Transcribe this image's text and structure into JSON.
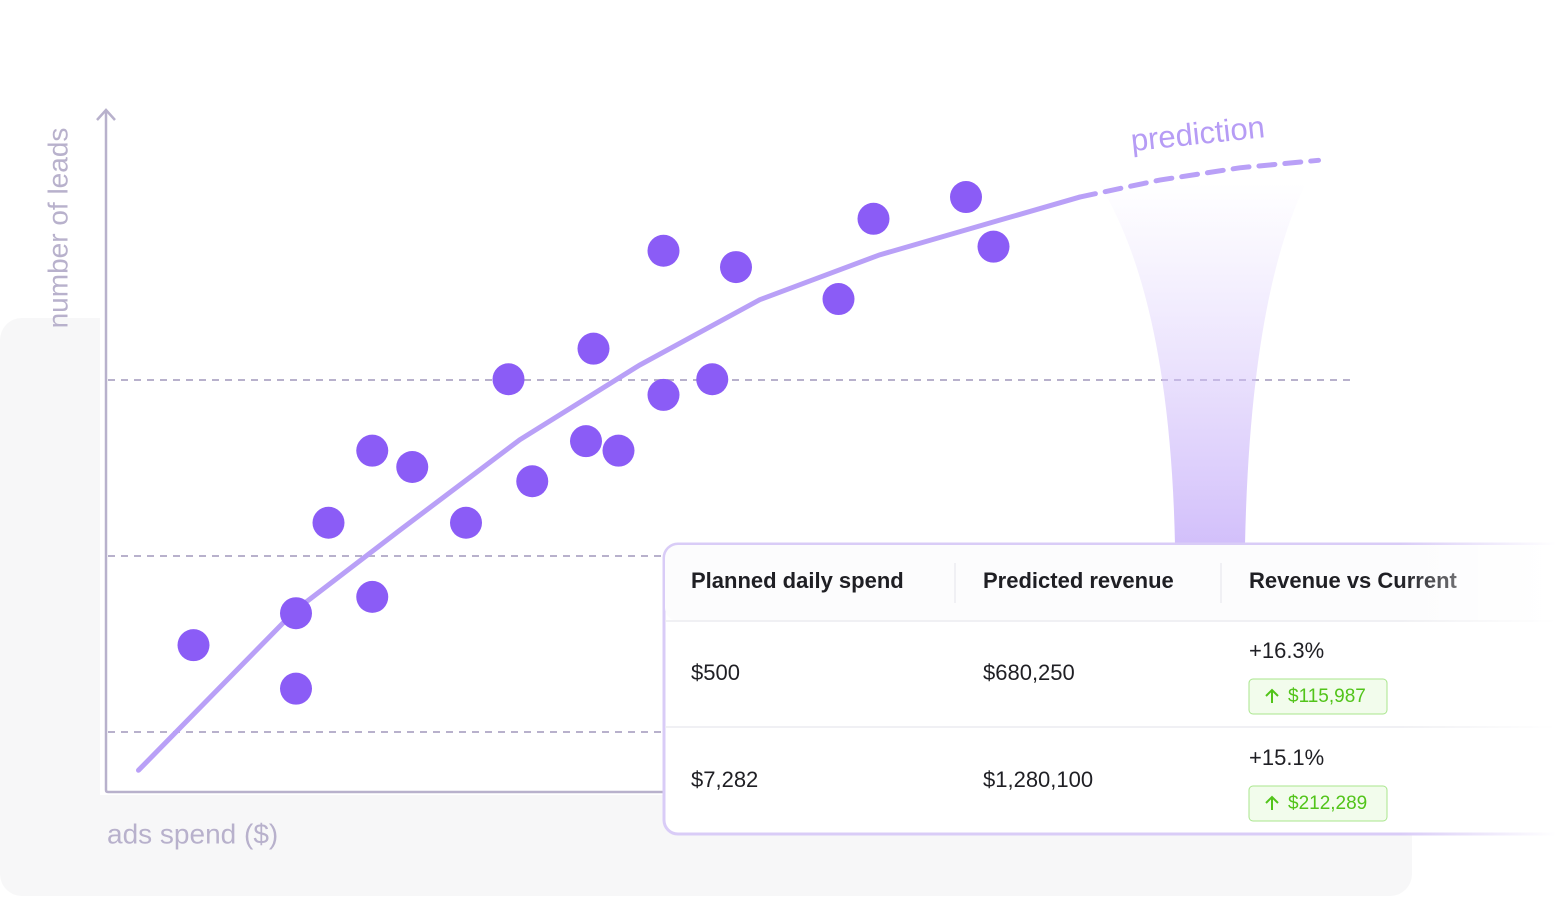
{
  "chart_data": {
    "type": "scatter",
    "x_label": "ads spend ($)",
    "y_label": "number of leads",
    "annotation": "prediction",
    "xlim": [
      0,
      100
    ],
    "ylim": [
      0,
      100
    ],
    "color": "#8b5cf6",
    "x": [
      7.0,
      15.2,
      15.2,
      17.8,
      21.3,
      21.3,
      24.5,
      28.8,
      32.2,
      34.1,
      38.4,
      39.0,
      41.0,
      44.6,
      44.6,
      48.5,
      50.4,
      58.6,
      61.4,
      68.8,
      71.0
    ],
    "values": [
      21.3,
      26.0,
      14.9,
      39.3,
      49.9,
      28.4,
      47.5,
      39.3,
      60.4,
      45.4,
      51.3,
      64.9,
      49.9,
      79.3,
      58.1,
      60.4,
      76.9,
      72.2,
      84.0,
      87.2,
      79.9
    ],
    "trend": {
      "color": "#b9a0f7",
      "x": [
        2.6,
        15.2,
        23.5,
        33.1,
        42.7,
        52.3,
        61.9,
        71.5,
        77.9
      ],
      "values": [
        2.9,
        26.5,
        38.2,
        51.5,
        62.5,
        72.1,
        78.7,
        83.8,
        87.2
      ]
    },
    "forecast": {
      "color": "#b9a0f7",
      "x": [
        77.9,
        84.3,
        90.7,
        97.0
      ],
      "values": [
        87.2,
        89.7,
        91.5,
        92.6
      ]
    }
  },
  "table": {
    "header": [
      "Planned daily spend",
      "Predicted revenue",
      "Revenue vs Current"
    ],
    "rows": [
      {
        "spend": "$500",
        "revenue": "$680,250",
        "change": "+16.3%",
        "delta": "$115,987"
      },
      {
        "spend": "$7,282",
        "revenue": "$1,280,100",
        "change": "+15.1%",
        "delta": "$212,289"
      }
    ]
  }
}
